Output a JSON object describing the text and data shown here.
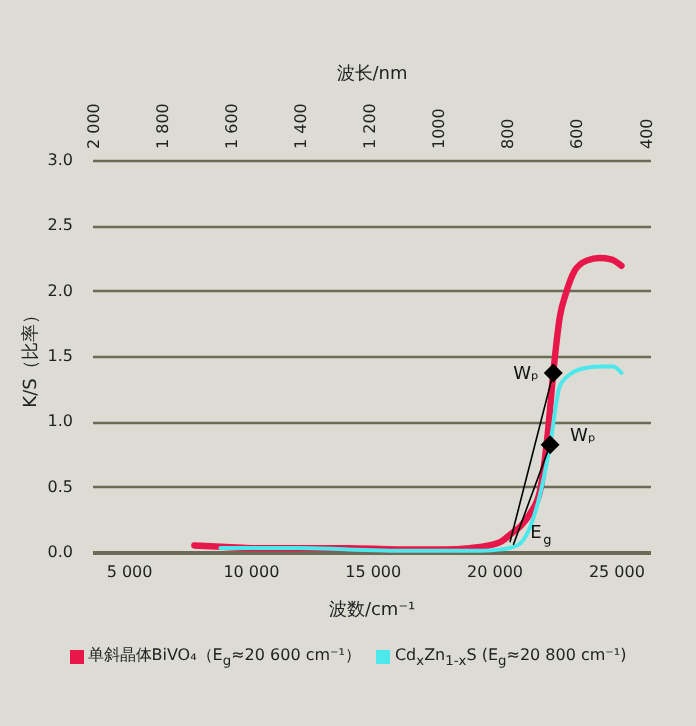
{
  "chart_data": {
    "type": "line",
    "xlabel": "波数/cm⁻¹",
    "ylabel": "K/S（比率）",
    "x2label": "波长/nm",
    "xlim": [
      3500,
      26400
    ],
    "ylim": [
      0,
      3
    ],
    "xticks": [
      {
        "value": 5000,
        "label": "5 000"
      },
      {
        "value": 10000,
        "label": "10 000"
      },
      {
        "value": 15000,
        "label": "15 000"
      },
      {
        "value": 20000,
        "label": "20 000"
      },
      {
        "value": 25000,
        "label": "25 000"
      }
    ],
    "yticks": [
      {
        "value": 0,
        "label": "0.0"
      },
      {
        "value": 0.5,
        "label": "0.5"
      },
      {
        "value": 1,
        "label": "1.0"
      },
      {
        "value": 1.5,
        "label": "1.5"
      },
      {
        "value": 2,
        "label": "2.0"
      },
      {
        "value": 2.5,
        "label": "2.5"
      },
      {
        "value": 3,
        "label": "3.0"
      }
    ],
    "x2lim": [
      2005,
      390
    ],
    "x2ticks": [
      {
        "value": 2000,
        "label": "2 000"
      },
      {
        "value": 1800,
        "label": "1 800"
      },
      {
        "value": 1600,
        "label": "1 600"
      },
      {
        "value": 1400,
        "label": "1 400"
      },
      {
        "value": 1200,
        "label": "1 200"
      },
      {
        "value": 1000,
        "label": "1000"
      },
      {
        "value": 800,
        "label": "800"
      },
      {
        "value": 600,
        "label": "600"
      },
      {
        "value": 400,
        "label": "400"
      }
    ],
    "grid": "y",
    "legend": "bottom",
    "series": [
      {
        "name": "单斜晶体BiVO₄（E$_{g}$≈20 600 cm⁻¹）",
        "color": "#e8174a",
        "x": [
          7700,
          8800,
          10000,
          12000,
          14000,
          16000,
          18000,
          19000,
          19800,
          20300,
          20700,
          21100,
          21500,
          21900,
          22200,
          22430,
          22700,
          22950,
          23300,
          23800,
          24340,
          24800,
          25230
        ],
        "values": [
          0.05,
          0.04,
          0.03,
          0.03,
          0.03,
          0.02,
          0.02,
          0.03,
          0.05,
          0.08,
          0.14,
          0.2,
          0.3,
          0.48,
          0.9,
          1.37,
          1.8,
          1.98,
          2.15,
          2.23,
          2.25,
          2.24,
          2.19
        ]
      },
      {
        "name": "Cd$_{x}$Zn$_{1-x}$S (E$_{g}$≈20 800 cm⁻¹)",
        "color": "#4de8ec",
        "x": [
          8770,
          10000,
          12000,
          14000,
          16000,
          18000,
          19500,
          20300,
          20800,
          21100,
          21500,
          21900,
          22300,
          22700,
          23200,
          23800,
          24400,
          24890,
          25230
        ],
        "values": [
          0.03,
          0.03,
          0.03,
          0.02,
          0.01,
          0.01,
          0.01,
          0.02,
          0.04,
          0.07,
          0.2,
          0.45,
          0.82,
          1.27,
          1.37,
          1.41,
          1.42,
          1.42,
          1.37
        ]
      },
      {
        "type": "line",
        "color": "#000000",
        "x": [
          22430,
          20660
        ],
        "values": [
          1.37,
          0.08
        ]
      },
      {
        "type": "line",
        "color": "#000000",
        "x": [
          22300,
          20800
        ],
        "values": [
          0.82,
          0.06
        ]
      },
      {
        "type": "scatter",
        "marker": "diamond",
        "color": "#000000",
        "x": [
          22430,
          22300
        ],
        "values": [
          1.37,
          0.82
        ]
      }
    ],
    "annotations": [
      {
        "text": "Wₚ",
        "x": 22430,
        "y": 1.37
      },
      {
        "text": "Wₚ",
        "x": 22300,
        "y": 0.82
      },
      {
        "text": "E$_{g}$",
        "x": 20660,
        "y": 0.08
      }
    ]
  }
}
